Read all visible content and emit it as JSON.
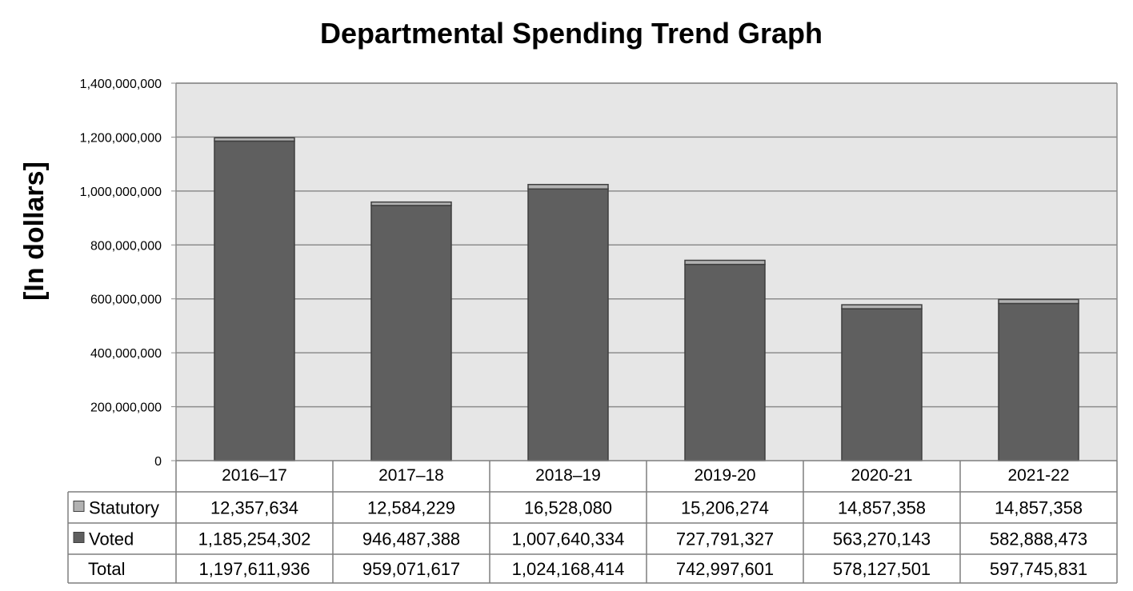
{
  "chart_data": {
    "type": "bar",
    "stacked": true,
    "title": "Departmental Spending Trend Graph",
    "ylabel": "[In dollars]",
    "xlabel": "",
    "ylim": [
      0,
      1400000000
    ],
    "y_ticks": [
      "0",
      "200,000,000",
      "400,000,000",
      "600,000,000",
      "800,000,000",
      "1,000,000,000",
      "1,200,000,000",
      "1,400,000,000"
    ],
    "y_tick_values": [
      0,
      200000000,
      400000000,
      600000000,
      800000000,
      1000000000,
      1200000000,
      1400000000
    ],
    "grid": true,
    "legend_position": "data-table",
    "categories": [
      "2016–17",
      "2017–18",
      "2018–19",
      "2019-20",
      "2020-21",
      "2021-22"
    ],
    "series": [
      {
        "name": "Voted",
        "color": "#5f5f5f",
        "values": [
          1185254302,
          946487388,
          1007640334,
          727791327,
          563270143,
          582888473
        ],
        "labels": [
          "1,185,254,302",
          "946,487,388",
          "1,007,640,334",
          "727,791,327",
          "563,270,143",
          "582,888,473"
        ]
      },
      {
        "name": "Statutory",
        "color": "#b2b2b2",
        "values": [
          12357634,
          12584229,
          16528080,
          15206274,
          14857358,
          14857358
        ],
        "labels": [
          "12,357,634",
          "12,584,229",
          "16,528,080",
          "15,206,274",
          "14,857,358",
          "14,857,358"
        ]
      }
    ],
    "total": {
      "name": "Total",
      "values": [
        1197611936,
        959071617,
        1024168414,
        742997601,
        578127501,
        597745831
      ],
      "labels": [
        "1,197,611,936",
        "959,071,617",
        "1,024,168,414",
        "742,997,601",
        "578,127,501",
        "597,745,831"
      ]
    },
    "colors": {
      "plot_background": "#e6e6e6",
      "gridline": "#8c8c8c",
      "bar_outline": "#3f3f3f"
    }
  }
}
